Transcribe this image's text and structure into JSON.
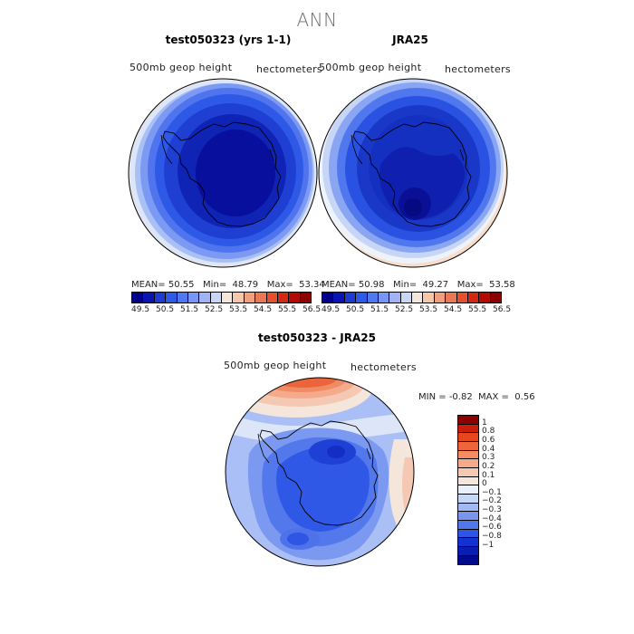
{
  "main_title": "ANN",
  "panel1": {
    "title": "test050323 (yrs 1-1)",
    "var_label": "500mb geop height",
    "units": "hectometers",
    "stats": {
      "mean_label": "MEAN=",
      "mean": "50.55",
      "min_label": "Min=",
      "min": "48.79",
      "max_label": "Max=",
      "max": "53.34"
    }
  },
  "panel2": {
    "title": "JRA25",
    "var_label": "500mb geop height",
    "units": "hectometers",
    "stats": {
      "mean_label": "MEAN=",
      "mean": "50.98",
      "min_label": "Min=",
      "min": "49.27",
      "max_label": "Max=",
      "max": "53.58"
    }
  },
  "panel3": {
    "title": "test050323 - JRA25",
    "var_label": "500mb geop height",
    "units": "hectometers",
    "minmax": {
      "min_label": "MIN =",
      "min": "-0.82",
      "max_label": "MAX =",
      "max": "0.56"
    }
  },
  "colorbar_h": {
    "ticks": [
      "49.5",
      "50.5",
      "51.5",
      "52.5",
      "53.5",
      "54.5",
      "55.5",
      "56.5"
    ],
    "colors": [
      "#00008c",
      "#0a14b4",
      "#1e3cd2",
      "#2d5ae6",
      "#5078f0",
      "#7896f5",
      "#a0b4f5",
      "#c8d7f5",
      "#f5e6dc",
      "#f5c8aa",
      "#f0a07d",
      "#eb7855",
      "#e6502d",
      "#d22814",
      "#b40a05",
      "#8c0000"
    ]
  },
  "colorbar_v": {
    "ticks": [
      "1",
      "0.8",
      "0.6",
      "0.4",
      "0.3",
      "0.2",
      "0.1",
      "0",
      "−0.1",
      "−0.2",
      "−0.3",
      "−0.4",
      "−0.6",
      "−0.8",
      "−1"
    ],
    "colors": [
      "#8c0000",
      "#c81e0a",
      "#e6461e",
      "#f0643c",
      "#f58c64",
      "#f5aa8c",
      "#f5c8b4",
      "#f5e6dc",
      "#eaf0fa",
      "#c8d7f5",
      "#a0b9f5",
      "#7896f0",
      "#5078eb",
      "#2d55e6",
      "#1432d2",
      "#0a1eb4",
      "#000a8c"
    ]
  }
}
